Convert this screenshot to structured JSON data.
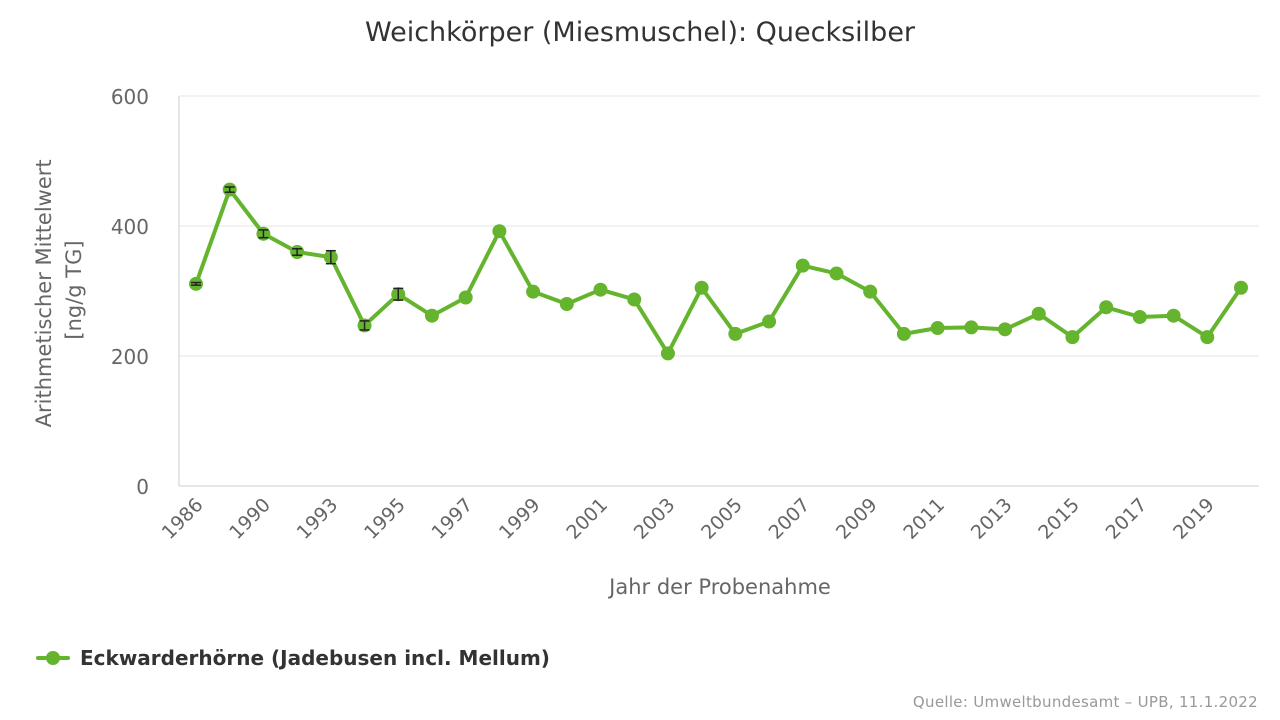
{
  "chart_data": {
    "type": "line",
    "title": "Weichkörper (Miesmuschel): Quecksilber",
    "xlabel": "Jahr der Probenahme",
    "ylabel_lines": [
      "Arithmetischer Mittelwert",
      "[ng/g TG]"
    ],
    "ylim": [
      0,
      600
    ],
    "yticks": [
      0,
      200,
      400,
      600
    ],
    "grid": true,
    "legend_position": "bottom-left",
    "x": [
      1986,
      1989,
      1990,
      1992,
      1993,
      1994,
      1995,
      1996,
      1997,
      1998,
      1999,
      2000,
      2001,
      2002,
      2003,
      2004,
      2005,
      2006,
      2007,
      2008,
      2009,
      2010,
      2011,
      2012,
      2013,
      2014,
      2015,
      2016,
      2017,
      2018,
      2019,
      2020
    ],
    "x_tick_labels": [
      "1986",
      "1990",
      "1993",
      "1995",
      "1997",
      "1999",
      "2001",
      "2003",
      "2005",
      "2007",
      "2009",
      "2011",
      "2013",
      "2015",
      "2017",
      "2019"
    ],
    "series": [
      {
        "name": "Eckwarderhörne (Jadebusen incl. Mellum)",
        "color": "#64b42d",
        "values": [
          311,
          456,
          388,
          360,
          352,
          247,
          295,
          262,
          290,
          392,
          299,
          280,
          302,
          287,
          204,
          305,
          234,
          253,
          339,
          327,
          299,
          234,
          243,
          244,
          241,
          265,
          229,
          275,
          260,
          262,
          229,
          305
        ],
        "error_low": [
          309,
          452,
          382,
          355,
          342,
          240,
          286,
          262,
          290,
          392,
          299,
          280,
          302,
          287,
          204,
          305,
          234,
          253,
          339,
          327,
          299,
          234,
          243,
          244,
          241,
          265,
          229,
          275,
          260,
          262,
          229,
          305
        ],
        "error_high": [
          313,
          460,
          394,
          365,
          362,
          254,
          304,
          262,
          290,
          392,
          299,
          280,
          302,
          287,
          204,
          305,
          234,
          253,
          339,
          327,
          299,
          234,
          243,
          244,
          241,
          265,
          229,
          275,
          260,
          262,
          229,
          305
        ]
      }
    ]
  },
  "legend": {
    "label": "Eckwarderhörne (Jadebusen incl. Mellum)"
  },
  "source": "Quelle: Umweltbundesamt – UPB, 11.1.2022"
}
